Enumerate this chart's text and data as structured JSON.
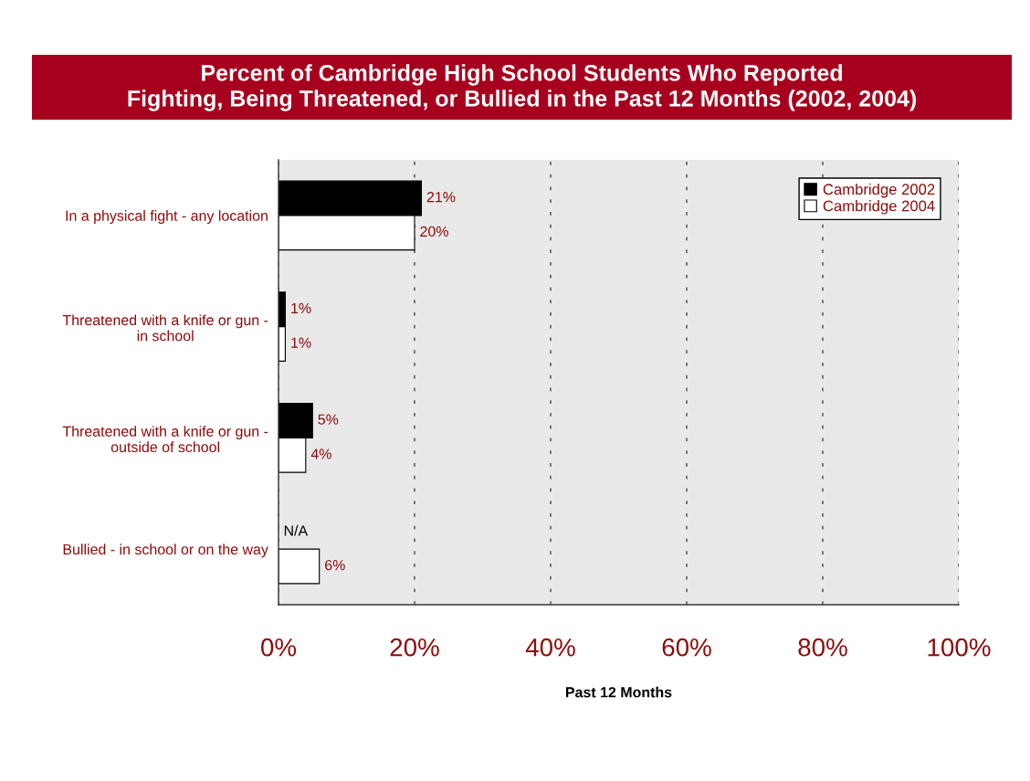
{
  "chart_data": {
    "type": "bar",
    "orientation": "horizontal",
    "title": "Percent of Cambridge High School Students Who Reported\nFighting, Being Threatened, or Bullied in the Past 12 Months (2002, 2004)",
    "xlabel": "Past 12 Months",
    "categories": [
      "In a physical fight - any location",
      "Threatened with a knife or gun -\nin school",
      "Threatened with a knife or gun -\noutside of school",
      "Bullied - in school or on the way"
    ],
    "series": [
      {
        "name": "Cambridge 2002",
        "color": "#000000",
        "values": [
          21,
          1,
          5,
          null
        ],
        "value_labels": [
          "21%",
          "1%",
          "5%",
          "N/A"
        ]
      },
      {
        "name": "Cambridge 2004",
        "color": "#ffffff",
        "values": [
          20,
          1,
          4,
          6
        ],
        "value_labels": [
          "20%",
          "1%",
          "4%",
          "6%"
        ]
      }
    ],
    "xlim": [
      0,
      100
    ],
    "xticks": [
      {
        "value": 0,
        "label": "0%"
      },
      {
        "value": 20,
        "label": "20%"
      },
      {
        "value": 40,
        "label": "40%"
      },
      {
        "value": 60,
        "label": "60%"
      },
      {
        "value": 80,
        "label": "80%"
      },
      {
        "value": 100,
        "label": "100%"
      }
    ],
    "grid": "x",
    "legend": "top right"
  }
}
